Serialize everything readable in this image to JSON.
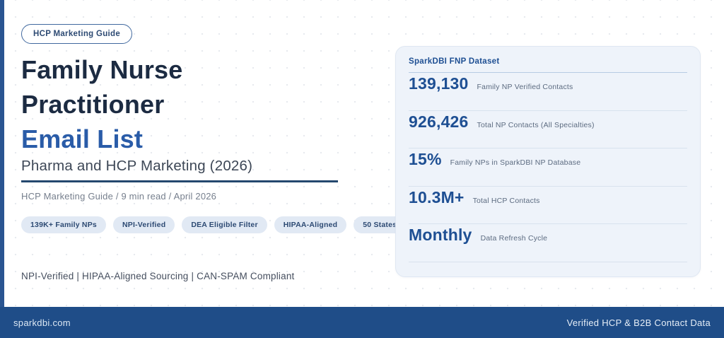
{
  "badge": {
    "label": "HCP Marketing Guide"
  },
  "hero": {
    "title_line1": "Family Nurse",
    "title_line2": "Practitioner",
    "title_accent": "Email List",
    "subtitle": "Pharma and HCP Marketing (2026)",
    "meta": "HCP Marketing Guide  /  9 min read  /  April 2026",
    "pills": [
      "139K+ Family NPs",
      "NPI-Verified",
      "DEA Eligible Filter",
      "HIPAA-Aligned",
      "50 States"
    ],
    "compliance": "NPI-Verified | HIPAA-Aligned Sourcing | CAN-SPAM Compliant"
  },
  "stats_card": {
    "title": "SparkDBI FNP Dataset",
    "stats": [
      {
        "value": "139,130",
        "label": "Family NP Verified Contacts"
      },
      {
        "value": "926,426",
        "label": "Total NP Contacts (All Specialties)"
      },
      {
        "value": "15%",
        "label": "Family NPs in SparkDBI NP Database"
      },
      {
        "value": "10.3M+",
        "label": "Total HCP Contacts"
      },
      {
        "value": "Monthly",
        "label": "Data Refresh Cycle"
      }
    ]
  },
  "footer": {
    "left": "sparkdbi.com",
    "right": "Verified HCP & B2B Contact Data"
  },
  "colors": {
    "title_navy": "#1c2b42",
    "accent_blue": "#2a5ca8",
    "stat_blue": "#1e4f93",
    "card_bg": "#eef3fa",
    "pill_bg": "#e1e9f4",
    "footer_bg": "#1f4d88",
    "left_bar": "#2a5591"
  }
}
